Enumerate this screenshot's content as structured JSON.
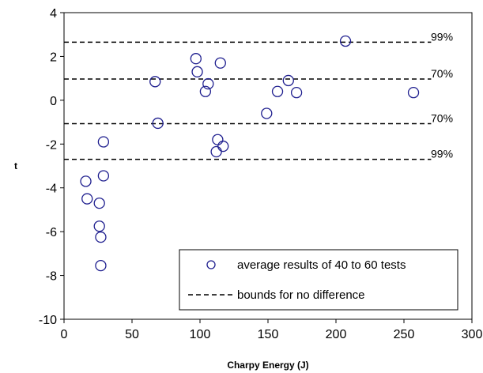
{
  "chart_data": {
    "type": "scatter",
    "xlabel": "Charpy Energy (J)",
    "ylabel": "t",
    "xlim": [
      0,
      300
    ],
    "ylim": [
      -10,
      4
    ],
    "xticks": [
      0,
      50,
      100,
      150,
      200,
      250,
      300
    ],
    "yticks": [
      -10,
      -8,
      -6,
      -4,
      -2,
      0,
      2,
      4
    ],
    "grid": false,
    "legend_position": "bottom-right",
    "marker_color": "#1f1f8f",
    "series": [
      {
        "name": "average results of 40 to 60 tests",
        "marker": "open-circle",
        "points": [
          {
            "x": 16,
            "y": -3.7
          },
          {
            "x": 17,
            "y": -4.5
          },
          {
            "x": 26,
            "y": -4.7
          },
          {
            "x": 26,
            "y": -5.75
          },
          {
            "x": 27,
            "y": -6.25
          },
          {
            "x": 27,
            "y": -7.55
          },
          {
            "x": 29,
            "y": -1.9
          },
          {
            "x": 29,
            "y": -3.45
          },
          {
            "x": 67,
            "y": 0.85
          },
          {
            "x": 69,
            "y": -1.05
          },
          {
            "x": 97,
            "y": 1.9
          },
          {
            "x": 98,
            "y": 1.3
          },
          {
            "x": 104,
            "y": 0.4
          },
          {
            "x": 106,
            "y": 0.75
          },
          {
            "x": 112,
            "y": -2.35
          },
          {
            "x": 113,
            "y": -1.8
          },
          {
            "x": 115,
            "y": 1.7
          },
          {
            "x": 117,
            "y": -2.1
          },
          {
            "x": 149,
            "y": -0.6
          },
          {
            "x": 157,
            "y": 0.4
          },
          {
            "x": 165,
            "y": 0.9
          },
          {
            "x": 171,
            "y": 0.35
          },
          {
            "x": 207,
            "y": 2.7
          },
          {
            "x": 257,
            "y": 0.35
          }
        ]
      }
    ],
    "bounds": {
      "name": "bounds for no difference",
      "line_style": "dashed",
      "x_range": [
        0,
        270
      ],
      "lines": [
        {
          "y": 2.65,
          "label": "99%"
        },
        {
          "y": 0.97,
          "label": "70%"
        },
        {
          "y": -1.07,
          "label": "70%"
        },
        {
          "y": -2.7,
          "label": "99%"
        }
      ]
    }
  }
}
